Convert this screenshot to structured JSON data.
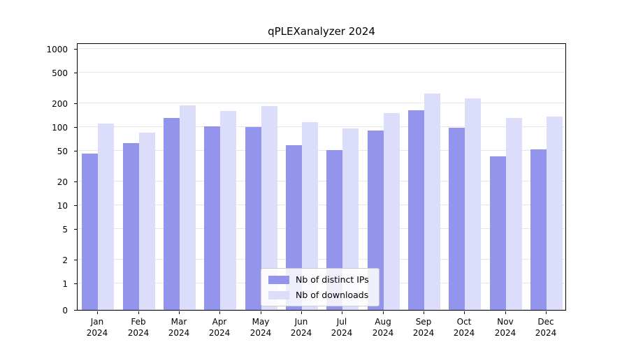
{
  "chart_data": {
    "type": "bar",
    "title": "qPLEXanalyzer 2024",
    "scale": "symlog",
    "grid": true,
    "legend_position": "lower center",
    "ylim": [
      0,
      1000
    ],
    "yticks": [
      0,
      1,
      2,
      5,
      10,
      20,
      50,
      100,
      200,
      500,
      1000
    ],
    "xlabel": "",
    "ylabel": "",
    "categories": [
      {
        "month": "Jan",
        "year": "2024"
      },
      {
        "month": "Feb",
        "year": "2024"
      },
      {
        "month": "Mar",
        "year": "2024"
      },
      {
        "month": "Apr",
        "year": "2024"
      },
      {
        "month": "May",
        "year": "2024"
      },
      {
        "month": "Jun",
        "year": "2024"
      },
      {
        "month": "Jul",
        "year": "2024"
      },
      {
        "month": "Aug",
        "year": "2024"
      },
      {
        "month": "Sep",
        "year": "2024"
      },
      {
        "month": "Oct",
        "year": "2024"
      },
      {
        "month": "Nov",
        "year": "2024"
      },
      {
        "month": "Dec",
        "year": "2024"
      }
    ],
    "series": [
      {
        "name": "Nb of distinct IPs",
        "color": "#9395ec",
        "values": [
          46,
          62,
          130,
          102,
          100,
          58,
          51,
          90,
          165,
          97,
          42,
          52
        ]
      },
      {
        "name": "Nb of downloads",
        "color": "#dcdcfb",
        "values": [
          110,
          85,
          190,
          160,
          185,
          115,
          95,
          150,
          270,
          230,
          130,
          135
        ]
      }
    ]
  }
}
